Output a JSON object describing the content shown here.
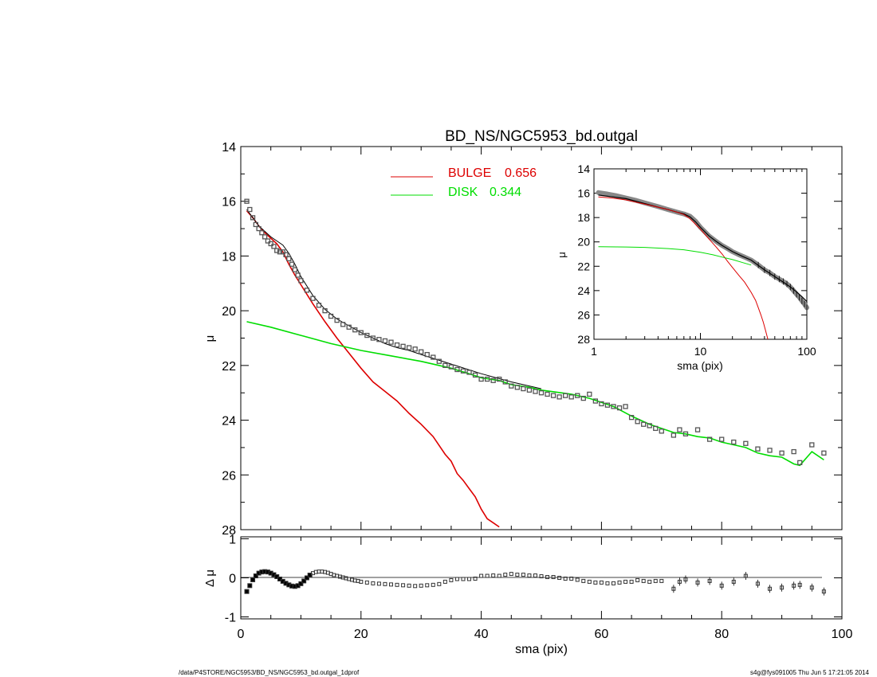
{
  "colors": {
    "bulge": "#dd0000",
    "disk": "#00dd00",
    "data": "#555555",
    "model": "#000000",
    "axis": "#000000"
  },
  "footer": {
    "left": "/data/P4STORE/NGC5953/BD_NS/NGC5953_bd.outgal_1dprof",
    "right": "s4g@fys091005  Thu Jun  5 17:21:05 2014"
  },
  "chart_data": [
    {
      "id": "main",
      "type": "line",
      "title": "BD_NS/NGC5953_bd.outgal",
      "ylabel": "μ",
      "xlabel": "",
      "xlim": [
        0,
        100
      ],
      "ylim": [
        28,
        14
      ],
      "yticks": [
        "14",
        "16",
        "18",
        "20",
        "22",
        "24",
        "26",
        "28"
      ],
      "legend_position": "top-center",
      "legend": [
        {
          "name": "BULGE",
          "value": "0.656",
          "color": "#dd0000"
        },
        {
          "name": "DISK",
          "value": "0.344",
          "color": "#00dd00"
        }
      ],
      "series": [
        {
          "name": "BULGE",
          "color": "#dd0000",
          "x": [
            1,
            2,
            3,
            4,
            5,
            6,
            7,
            8,
            9,
            10,
            12,
            14,
            16,
            18,
            20,
            22,
            24,
            26,
            28,
            30,
            32,
            34,
            35,
            36,
            37,
            38,
            39,
            40,
            41,
            42,
            43
          ],
          "y": [
            16.35,
            16.6,
            16.9,
            17.15,
            17.35,
            17.55,
            17.85,
            18.3,
            18.7,
            19.05,
            19.75,
            20.4,
            21.0,
            21.55,
            22.1,
            22.6,
            22.95,
            23.3,
            23.75,
            24.15,
            24.6,
            25.25,
            25.5,
            25.95,
            26.2,
            26.5,
            26.8,
            27.25,
            27.6,
            27.75,
            27.9
          ]
        },
        {
          "name": "DISK",
          "color": "#00dd00",
          "x": [
            1,
            5,
            10,
            15,
            20,
            25,
            30,
            35,
            38,
            40,
            43,
            45,
            48,
            50,
            55,
            58,
            60,
            62,
            65,
            68,
            70,
            72,
            74,
            76,
            78,
            80,
            82,
            84,
            86,
            88,
            90,
            92,
            93,
            95,
            97
          ],
          "y": [
            20.4,
            20.6,
            20.9,
            21.2,
            21.45,
            21.65,
            21.85,
            22.1,
            22.3,
            22.45,
            22.55,
            22.7,
            22.8,
            22.9,
            23.05,
            23.2,
            23.35,
            23.5,
            23.85,
            24.15,
            24.3,
            24.45,
            24.5,
            24.6,
            24.65,
            24.8,
            24.9,
            25.0,
            25.2,
            25.3,
            25.35,
            25.6,
            25.65,
            25.15,
            25.45
          ]
        },
        {
          "name": "model",
          "color": "#000000",
          "x": [
            1,
            2,
            3,
            4,
            5,
            6,
            7,
            8,
            9,
            10,
            12,
            14,
            16,
            18,
            20,
            22,
            24,
            26,
            28,
            30,
            35,
            40,
            45,
            50
          ],
          "y": [
            16.3,
            16.6,
            16.9,
            17.1,
            17.3,
            17.45,
            17.6,
            17.9,
            18.3,
            18.75,
            19.45,
            19.95,
            20.3,
            20.55,
            20.8,
            21.0,
            21.2,
            21.35,
            21.45,
            21.6,
            21.95,
            22.3,
            22.6,
            22.85
          ]
        },
        {
          "name": "data",
          "color": "#555555",
          "x": [
            1,
            1.5,
            2,
            2.5,
            3,
            3.5,
            4,
            4.5,
            5,
            5.5,
            6,
            6.5,
            7,
            7.5,
            8,
            8.5,
            9,
            9.5,
            10,
            11,
            12,
            13,
            14,
            15,
            16,
            17,
            18,
            19,
            20,
            21,
            22,
            23,
            24,
            25,
            26,
            27,
            28,
            29,
            30,
            31,
            32,
            33,
            34,
            35,
            36,
            37,
            38,
            39,
            40,
            41,
            42,
            43,
            44,
            45,
            46,
            47,
            48,
            49,
            50,
            51,
            52,
            53,
            54,
            55,
            56,
            57,
            58,
            59,
            60,
            61,
            62,
            63,
            64,
            65,
            66,
            67,
            68,
            69,
            70,
            72,
            73,
            74,
            76,
            78,
            80,
            82,
            84,
            86,
            88,
            90,
            92,
            93,
            95,
            97
          ],
          "y": [
            16.0,
            16.3,
            16.6,
            16.85,
            17.0,
            17.15,
            17.3,
            17.45,
            17.55,
            17.65,
            17.8,
            17.85,
            17.85,
            17.95,
            18.1,
            18.3,
            18.5,
            18.7,
            18.9,
            19.25,
            19.55,
            19.8,
            20.0,
            20.2,
            20.35,
            20.5,
            20.6,
            20.7,
            20.8,
            20.9,
            21.0,
            21.05,
            21.1,
            21.15,
            21.25,
            21.3,
            21.35,
            21.4,
            21.5,
            21.6,
            21.7,
            21.85,
            22.0,
            22.05,
            22.15,
            22.2,
            22.25,
            22.35,
            22.5,
            22.5,
            22.55,
            22.5,
            22.6,
            22.75,
            22.8,
            22.85,
            22.9,
            22.95,
            23.0,
            23.05,
            23.1,
            23.15,
            23.1,
            23.15,
            23.1,
            23.2,
            23.05,
            23.3,
            23.4,
            23.45,
            23.5,
            23.55,
            23.5,
            23.9,
            24.05,
            24.15,
            24.2,
            24.3,
            24.4,
            24.55,
            24.35,
            24.5,
            24.35,
            24.7,
            24.7,
            24.8,
            24.85,
            25.05,
            25.1,
            25.2,
            25.15,
            25.55,
            24.9,
            25.2
          ]
        }
      ]
    },
    {
      "id": "residual",
      "type": "scatter",
      "ylabel": "Δ μ",
      "xlabel": "sma (pix)",
      "xlim": [
        0,
        100
      ],
      "ylim": [
        -1.05,
        1.05
      ],
      "xticks": [
        "0",
        "20",
        "40",
        "60",
        "80",
        "100"
      ],
      "yticks": [
        "1",
        "0",
        "-1"
      ],
      "series": [
        {
          "name": "residual",
          "color": "#000000",
          "x": [
            1,
            1.5,
            2,
            2.5,
            3,
            3.5,
            4,
            4.5,
            5,
            5.5,
            6,
            6.5,
            7,
            7.5,
            8,
            8.5,
            9,
            9.5,
            10,
            10.5,
            11,
            11.5,
            12,
            12.5,
            13,
            13.5,
            14,
            14.5,
            15,
            15.5,
            16,
            16.5,
            17,
            17.5,
            18,
            18.5,
            19,
            19.5,
            20,
            21,
            22,
            23,
            24,
            25,
            26,
            27,
            28,
            29,
            30,
            31,
            32,
            33,
            34,
            35,
            36,
            37,
            38,
            39,
            40,
            41,
            42,
            43,
            44,
            45,
            46,
            47,
            48,
            49,
            50,
            51,
            52,
            53,
            54,
            55,
            56,
            57,
            58,
            59,
            60,
            61,
            62,
            63,
            64,
            65,
            66,
            67,
            68,
            69,
            70,
            72,
            73,
            74,
            76,
            78,
            80,
            82,
            84,
            86,
            88,
            90,
            92,
            93,
            95,
            97
          ],
          "y": [
            -0.35,
            -0.2,
            -0.05,
            0.05,
            0.12,
            0.15,
            0.16,
            0.15,
            0.12,
            0.08,
            0.03,
            -0.03,
            -0.09,
            -0.14,
            -0.18,
            -0.21,
            -0.22,
            -0.2,
            -0.15,
            -0.08,
            0.0,
            0.07,
            0.12,
            0.15,
            0.16,
            0.16,
            0.15,
            0.13,
            0.1,
            0.07,
            0.05,
            0.03,
            0.01,
            -0.01,
            -0.03,
            -0.05,
            -0.07,
            -0.08,
            -0.1,
            -0.12,
            -0.14,
            -0.15,
            -0.16,
            -0.17,
            -0.18,
            -0.19,
            -0.2,
            -0.21,
            -0.2,
            -0.19,
            -0.18,
            -0.16,
            -0.1,
            -0.06,
            -0.03,
            -0.03,
            -0.03,
            -0.02,
            0.05,
            0.05,
            0.06,
            0.05,
            0.08,
            0.1,
            0.08,
            0.08,
            0.06,
            0.06,
            0.04,
            0.02,
            0.02,
            0.0,
            -0.02,
            -0.02,
            -0.05,
            -0.08,
            -0.1,
            -0.12,
            -0.12,
            -0.14,
            -0.14,
            -0.12,
            -0.1,
            -0.1,
            -0.06,
            -0.08,
            -0.1,
            -0.08,
            -0.08,
            -0.28,
            -0.1,
            -0.04,
            -0.12,
            -0.08,
            -0.2,
            -0.1,
            0.05,
            -0.15,
            -0.28,
            -0.25,
            -0.2,
            -0.18,
            -0.25,
            -0.35
          ]
        }
      ]
    },
    {
      "id": "inset",
      "type": "line",
      "ylabel": "μ",
      "xlabel": "sma (pix)",
      "xscale": "log",
      "xlim": [
        1,
        100
      ],
      "ylim": [
        28,
        14
      ],
      "xticks": [
        "1",
        "10",
        "100"
      ],
      "yticks": [
        "14",
        "16",
        "18",
        "20",
        "22",
        "24",
        "26",
        "28"
      ],
      "series": [
        {
          "name": "data",
          "color": "#555555",
          "x": [
            1.1,
            1.3,
            1.6,
            2,
            2.5,
            3,
            4,
            5,
            6,
            7,
            8,
            9,
            10,
            12,
            14,
            16,
            18,
            20,
            23,
            26,
            30,
            35,
            40,
            45,
            50,
            55,
            60,
            65,
            70,
            75,
            80,
            85,
            90,
            95,
            100
          ],
          "y": [
            15.95,
            16.05,
            16.2,
            16.4,
            16.6,
            16.8,
            17.1,
            17.35,
            17.55,
            17.7,
            17.9,
            18.3,
            18.8,
            19.5,
            19.95,
            20.3,
            20.55,
            20.8,
            21.05,
            21.25,
            21.5,
            21.9,
            22.3,
            22.55,
            22.85,
            23.05,
            23.25,
            23.45,
            23.7,
            24.0,
            24.3,
            24.55,
            24.85,
            25.1,
            25.4
          ]
        },
        {
          "name": "model",
          "color": "#000000",
          "x": [
            1.1,
            1.5,
            2,
            3,
            4,
            5,
            6,
            7,
            8,
            9,
            10,
            12,
            14,
            16,
            20,
            25,
            30,
            40,
            50,
            60,
            70,
            80,
            90,
            100
          ],
          "y": [
            16.15,
            16.3,
            16.45,
            16.85,
            17.15,
            17.35,
            17.55,
            17.7,
            17.95,
            18.35,
            18.8,
            19.5,
            19.95,
            20.3,
            20.8,
            21.2,
            21.5,
            22.3,
            22.85,
            23.3,
            23.7,
            24.1,
            24.5,
            24.9
          ]
        },
        {
          "name": "BULGE",
          "color": "#dd0000",
          "x": [
            1.1,
            1.5,
            2,
            3,
            4,
            5,
            6,
            7,
            8,
            9,
            10,
            12,
            14,
            16,
            18,
            20,
            23,
            26,
            30,
            33,
            35,
            37,
            39,
            41,
            43
          ],
          "y": [
            16.3,
            16.4,
            16.55,
            16.9,
            17.15,
            17.35,
            17.55,
            17.75,
            18.1,
            18.55,
            18.95,
            19.75,
            20.4,
            21.0,
            21.6,
            22.1,
            22.75,
            23.3,
            24.15,
            24.8,
            25.4,
            26.0,
            26.6,
            27.3,
            28.0
          ]
        },
        {
          "name": "DISK",
          "color": "#00dd00",
          "x": [
            1.1,
            2,
            3,
            5,
            7,
            10,
            13,
            16,
            20,
            25,
            30
          ],
          "y": [
            20.4,
            20.42,
            20.45,
            20.55,
            20.65,
            20.85,
            21.05,
            21.25,
            21.45,
            21.7,
            21.9
          ]
        }
      ]
    }
  ]
}
